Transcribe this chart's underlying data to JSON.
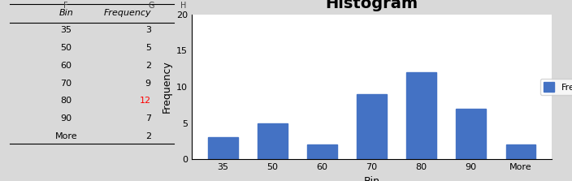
{
  "categories": [
    "35",
    "50",
    "60",
    "70",
    "80",
    "90",
    "More"
  ],
  "values": [
    3,
    5,
    2,
    9,
    12,
    7,
    2
  ],
  "bar_color": "#4472C4",
  "title": "Histogram",
  "xlabel": "Bin",
  "ylabel": "Frequency",
  "ylim": [
    0,
    20
  ],
  "yticks": [
    0,
    5,
    10,
    15,
    20
  ],
  "legend_label": "Frequency",
  "title_fontsize": 14,
  "axis_label_fontsize": 9,
  "tick_fontsize": 8,
  "background_color": "#ffffff",
  "chart_area_color": "#ffffff",
  "outer_bg_color": "#d9d9d9",
  "table_bins": [
    "Bin",
    "35",
    "50",
    "60",
    "70",
    "80",
    "90",
    "More"
  ],
  "table_freqs": [
    "Frequency",
    "3",
    "5",
    "2",
    "9",
    "12",
    "7",
    "2"
  ],
  "highlight_row": 5,
  "highlight_color": "red"
}
